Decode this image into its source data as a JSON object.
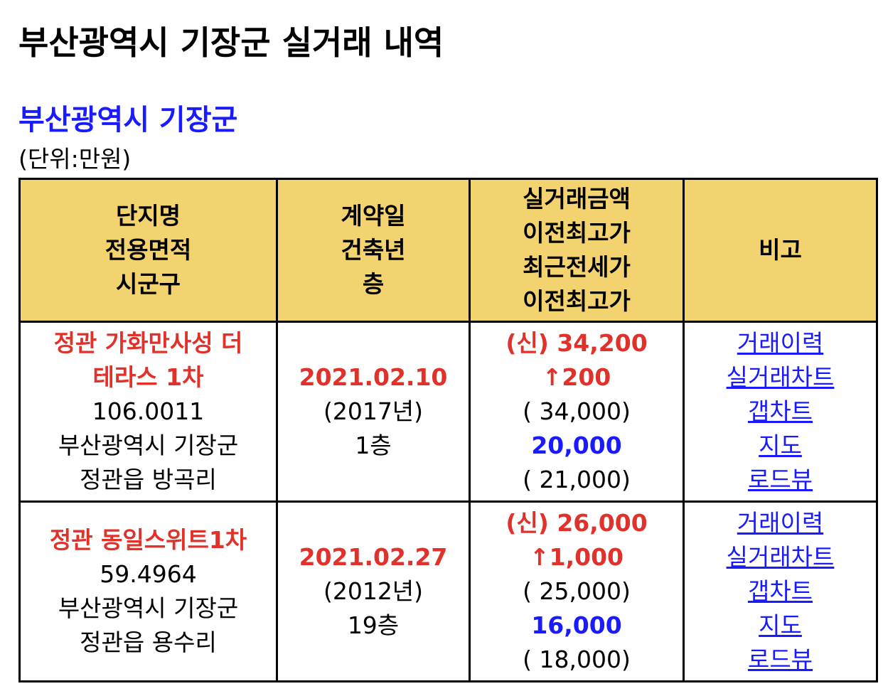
{
  "page": {
    "title": "부산광역시 기장군 실거래 내역",
    "region": "부산광역시 기장군",
    "unit": "(단위:만원)"
  },
  "table": {
    "headers": {
      "col1": [
        "단지명",
        "전용면적",
        "시군구"
      ],
      "col2": [
        "계약일",
        "건축년",
        "층"
      ],
      "col3": [
        "실거래금액",
        "이전최고가",
        "최근전세가",
        "이전최고가"
      ],
      "col4": [
        "비고"
      ]
    },
    "rows": [
      {
        "name": "정관 가화만사성 더 테라스 1차",
        "area": "106.0011",
        "address": "부산광역시 기장군 정관읍 방곡리",
        "date": "2021.02.10",
        "built": "(2017년)",
        "floor": "1층",
        "price": "(신) 34,200",
        "change": "↑200",
        "prev_high": "( 34,000)",
        "jeonse": "20,000",
        "jeonse_prev_high": "( 21,000)",
        "links": [
          "거래이력",
          "실거래차트",
          "갭차트",
          "지도",
          "로드뷰"
        ]
      },
      {
        "name": "정관 동일스위트1차",
        "area": "59.4964",
        "address": "부산광역시 기장군 정관읍 용수리",
        "date": "2021.02.27",
        "built": "(2012년)",
        "floor": "19층",
        "price": "(신) 26,000",
        "change": "↑1,000",
        "prev_high": "( 25,000)",
        "jeonse": "16,000",
        "jeonse_prev_high": "( 18,000)",
        "links": [
          "거래이력",
          "실거래차트",
          "갭차트",
          "지도",
          "로드뷰"
        ]
      }
    ]
  },
  "colors": {
    "header_bg": "#f2d36f",
    "accent_red": "#e0312b",
    "accent_blue": "#1a1aff",
    "border": "#000000"
  }
}
